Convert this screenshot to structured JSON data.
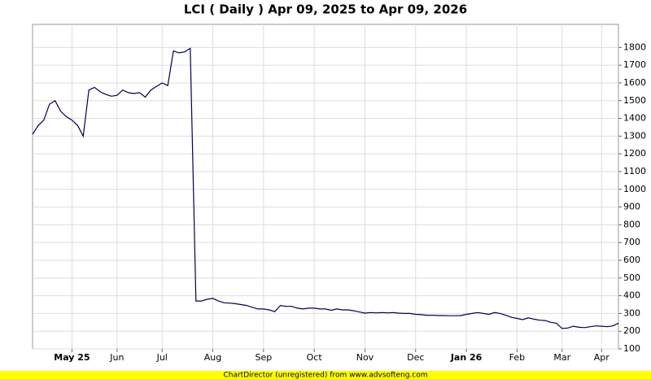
{
  "chart_data": {
    "type": "line",
    "title": "LCI ( Daily ) Apr 09, 2025 to Apr 09, 2026",
    "footer": "ChartDirector (unregistered) from www.advsofteng.com",
    "categories": [
      null,
      null,
      null,
      null,
      null,
      null,
      null,
      "May 25",
      null,
      null,
      null,
      null,
      null,
      null,
      null,
      "Jun",
      null,
      null,
      null,
      null,
      null,
      null,
      null,
      "Jul",
      null,
      null,
      null,
      null,
      null,
      null,
      null,
      null,
      "Aug",
      null,
      null,
      null,
      null,
      null,
      null,
      null,
      null,
      "Sep",
      null,
      null,
      null,
      null,
      null,
      null,
      null,
      null,
      "Oct",
      null,
      null,
      null,
      null,
      null,
      null,
      null,
      null,
      "Nov",
      null,
      null,
      null,
      null,
      null,
      null,
      null,
      null,
      "Dec",
      null,
      null,
      null,
      null,
      null,
      null,
      null,
      null,
      "Jan 26",
      null,
      null,
      null,
      null,
      null,
      null,
      null,
      null,
      "Feb",
      null,
      null,
      null,
      null,
      null,
      null,
      null,
      "Mar",
      null,
      null,
      null,
      null,
      null,
      null,
      "Apr",
      null,
      null,
      null
    ],
    "series": [
      {
        "name": "LCI",
        "color": "#000050",
        "values": [
          1310,
          1360,
          1390,
          1480,
          1500,
          1440,
          1410,
          1390,
          1360,
          1300,
          1560,
          1575,
          1550,
          1535,
          1525,
          1530,
          1560,
          1545,
          1540,
          1545,
          1520,
          1560,
          1580,
          1600,
          1585,
          1780,
          1770,
          1775,
          1795,
          370,
          370,
          380,
          385,
          370,
          360,
          358,
          355,
          350,
          345,
          335,
          325,
          325,
          320,
          310,
          345,
          340,
          340,
          330,
          325,
          330,
          330,
          325,
          325,
          318,
          325,
          320,
          320,
          315,
          308,
          302,
          305,
          303,
          305,
          303,
          305,
          302,
          300,
          300,
          295,
          293,
          290,
          290,
          288,
          288,
          287,
          287,
          288,
          295,
          300,
          305,
          300,
          295,
          305,
          300,
          290,
          278,
          272,
          265,
          275,
          268,
          262,
          260,
          250,
          245,
          215,
          218,
          228,
          222,
          220,
          225,
          230,
          228,
          225,
          230,
          245
        ]
      }
    ],
    "ylim": [
      100,
      1930
    ],
    "yticks": [
      100,
      200,
      300,
      400,
      500,
      600,
      700,
      800,
      900,
      1000,
      1100,
      1200,
      1300,
      1400,
      1500,
      1600,
      1700,
      1800
    ],
    "grid": true
  }
}
